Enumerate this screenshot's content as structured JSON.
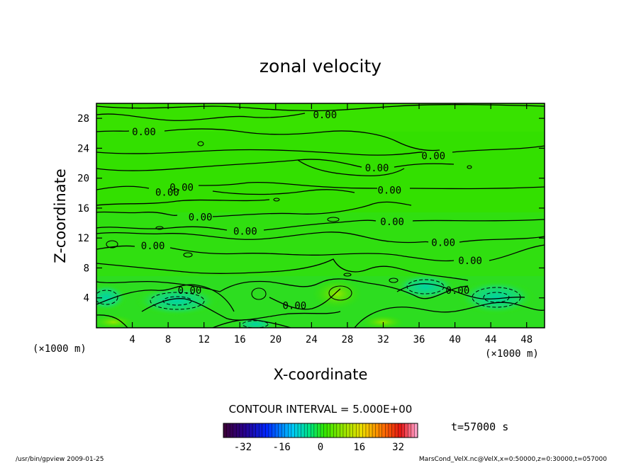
{
  "chart_data": {
    "type": "heatmap",
    "title": "zonal velocity",
    "xlabel": "X-coordinate",
    "ylabel": "Z-coordinate",
    "x_unit": "(×1000 m)",
    "z_unit": "(×1000 m)",
    "xlim": [
      0,
      50
    ],
    "ylim": [
      0,
      30
    ],
    "x_ticks": [
      "4",
      "8",
      "12",
      "16",
      "20",
      "24",
      "28",
      "32",
      "36",
      "40",
      "44",
      "48"
    ],
    "y_ticks": [
      "4",
      "8",
      "12",
      "16",
      "20",
      "24",
      "28"
    ],
    "x_tick_values": [
      4,
      8,
      12,
      16,
      20,
      24,
      28,
      32,
      36,
      40,
      44,
      48
    ],
    "y_tick_values": [
      4,
      8,
      12,
      16,
      20,
      24,
      28
    ],
    "contour_labels": [
      {
        "text": "0.00",
        "x": 25.5,
        "z": 28.5
      },
      {
        "text": "0.00",
        "x": 5.3,
        "z": 26.2
      },
      {
        "text": "0.00",
        "x": 37.6,
        "z": 23.0
      },
      {
        "text": "0.00",
        "x": 31.3,
        "z": 21.4
      },
      {
        "text": "0.00",
        "x": 9.5,
        "z": 18.8
      },
      {
        "text": "0.00",
        "x": 7.9,
        "z": 18.1
      },
      {
        "text": "0.00",
        "x": 32.7,
        "z": 18.4
      },
      {
        "text": "0.00",
        "x": 11.6,
        "z": 14.8
      },
      {
        "text": "0.00",
        "x": 33.0,
        "z": 14.2
      },
      {
        "text": "0.00",
        "x": 16.6,
        "z": 12.9
      },
      {
        "text": "0.00",
        "x": 38.7,
        "z": 11.4
      },
      {
        "text": "0.00",
        "x": 6.3,
        "z": 11.0
      },
      {
        "text": "0.00",
        "x": 41.7,
        "z": 9.0
      },
      {
        "text": "0.00",
        "x": 10.4,
        "z": 5.0
      },
      {
        "text": "0.00",
        "x": 40.3,
        "z": 5.0
      },
      {
        "text": "0.00",
        "x": 22.1,
        "z": 3.0
      }
    ],
    "contour_interval": "CONTOUR INTERVAL = 5.000E+00",
    "colorbar": {
      "min": -40,
      "max": 40,
      "ticks": [
        "-32",
        "-16",
        "0",
        "16",
        "32"
      ],
      "tick_values": [
        -32,
        -16,
        0,
        16,
        32
      ]
    },
    "time_label": "t=57000 s"
  },
  "footer": {
    "left": "/usr/bin/gpview  2009-01-25",
    "right": "MarsCond_VelX.nc@VelX,x=0:50000,z=0:30000,t=057000"
  },
  "colors": {
    "field_base": "#33e000",
    "frame": "#000000"
  }
}
